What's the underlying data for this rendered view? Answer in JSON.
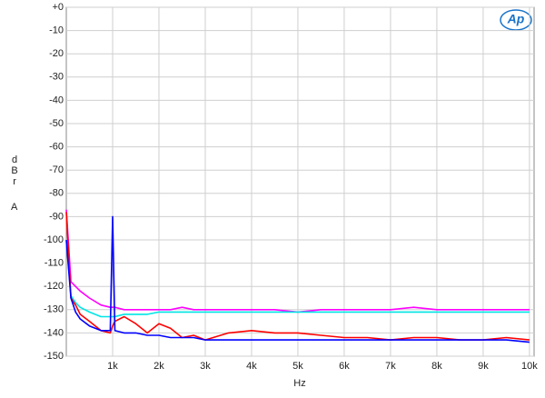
{
  "chart_data": {
    "type": "line",
    "logo": "Ap",
    "ylabel": "dBr",
    "ylabel_unit": "A",
    "xlabel": "Hz",
    "x": [
      0,
      100,
      200,
      300,
      500,
      750,
      950,
      1000,
      1050,
      1250,
      1500,
      1750,
      2000,
      2250,
      2500,
      2750,
      3000,
      3500,
      4000,
      4500,
      5000,
      5500,
      6000,
      6500,
      7000,
      7500,
      8000,
      8500,
      9000,
      9500,
      10000
    ],
    "series": [
      {
        "color": "#ff00ff",
        "values": [
          -87,
          -118,
          -120,
          -122,
          -125,
          -128,
          -129,
          -129,
          -129,
          -130,
          -130,
          -130,
          -130,
          -130,
          -129,
          -130,
          -130,
          -130,
          -130,
          -130,
          -131,
          -130,
          -130,
          -130,
          -130,
          -129,
          -130,
          -130,
          -130,
          -130,
          -130
        ]
      },
      {
        "color": "#00e5e5",
        "values": [
          -100,
          -124,
          -127,
          -129,
          -131,
          -133,
          -133,
          -133,
          -133,
          -132,
          -132,
          -132,
          -131,
          -131,
          -131,
          -131,
          -131,
          -131,
          -131,
          -131,
          -131,
          -131,
          -131,
          -131,
          -131,
          -131,
          -131,
          -131,
          -131,
          -131,
          -131
        ]
      },
      {
        "color": "#ff0000",
        "values": [
          -88,
          -125,
          -128,
          -132,
          -135,
          -139,
          -140,
          -137,
          -135,
          -133,
          -136,
          -140,
          -136,
          -138,
          -142,
          -141,
          -143,
          -140,
          -139,
          -140,
          -140,
          -141,
          -142,
          -142,
          -143,
          -142,
          -142,
          -143,
          -143,
          -142,
          -143
        ]
      },
      {
        "color": "#0000ff",
        "values": [
          -100,
          -125,
          -131,
          -134,
          -137,
          -139,
          -139,
          -90,
          -139,
          -140,
          -140,
          -141,
          -141,
          -142,
          -142,
          -142,
          -143,
          -143,
          -143,
          -143,
          -143,
          -143,
          -143,
          -143,
          -143,
          -143,
          -143,
          -143,
          -143,
          -143,
          -144
        ]
      }
    ],
    "xlim": [
      0,
      10100
    ],
    "xticks": [
      {
        "value": 1000,
        "label": "1k"
      },
      {
        "value": 2000,
        "label": "2k"
      },
      {
        "value": 3000,
        "label": "3k"
      },
      {
        "value": 4000,
        "label": "4k"
      },
      {
        "value": 5000,
        "label": "5k"
      },
      {
        "value": 6000,
        "label": "6k"
      },
      {
        "value": 7000,
        "label": "7k"
      },
      {
        "value": 8000,
        "label": "8k"
      },
      {
        "value": 9000,
        "label": "9k"
      },
      {
        "value": 10000,
        "label": "10k"
      }
    ],
    "ylim": [
      -150,
      0
    ],
    "yticks": [
      {
        "value": 0,
        "label": "+0"
      },
      -10,
      -20,
      -30,
      -40,
      -50,
      -60,
      -70,
      -80,
      -90,
      -100,
      -110,
      -120,
      -130,
      -140,
      -150
    ],
    "grid": true
  }
}
